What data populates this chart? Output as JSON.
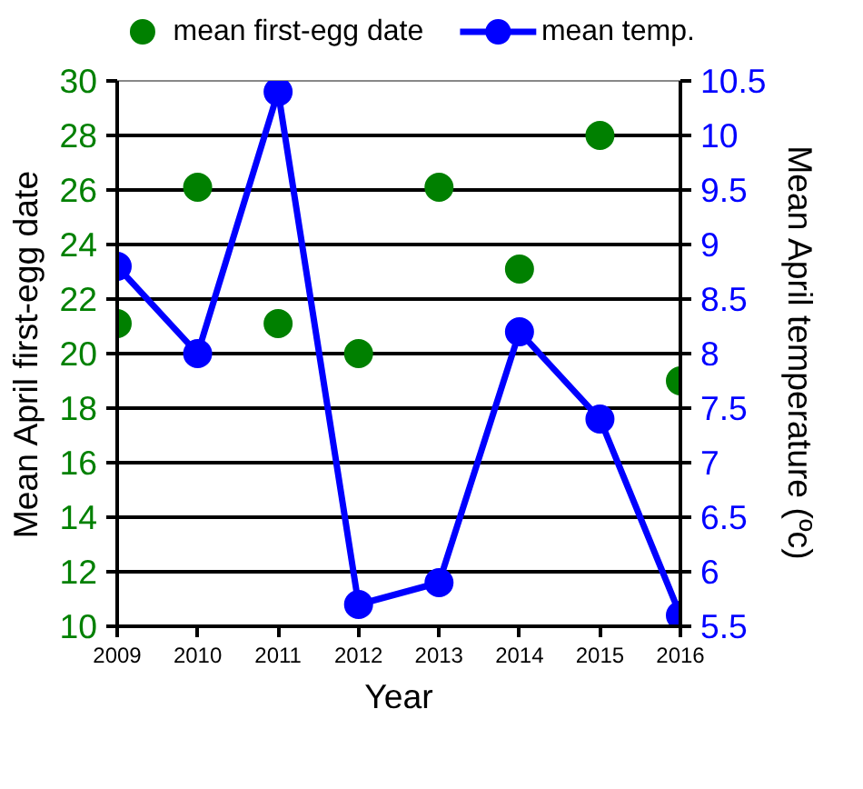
{
  "chart_data": {
    "type": "scatter",
    "xlabel": "Year",
    "ylabel": "Mean April first-egg date",
    "y2label": "Mean April temperature (ºc)",
    "x": [
      2009,
      2010,
      2011,
      2012,
      2013,
      2014,
      2015,
      2016
    ],
    "xlim": [
      2009,
      2016
    ],
    "xticks": [
      2009,
      2010,
      2011,
      2012,
      2013,
      2014,
      2015,
      2016
    ],
    "ylim": [
      10,
      30
    ],
    "yticks": [
      10,
      12,
      14,
      16,
      18,
      20,
      22,
      24,
      26,
      28,
      30
    ],
    "y2lim": [
      5.5,
      10.5
    ],
    "y2ticks": [
      5.5,
      6,
      6.5,
      7,
      7.5,
      8,
      8.5,
      9,
      9.5,
      10,
      10.5
    ],
    "series": [
      {
        "name": "mean first-egg date",
        "color": "#008000",
        "values": [
          21.1,
          26.1,
          21.1,
          20,
          26.1,
          23.1,
          28,
          19
        ]
      },
      {
        "name": "mean temp.",
        "color": "#0000ff",
        "type": "line",
        "axis": "y2",
        "values": [
          8.8,
          8.0,
          10.4,
          5.7,
          5.9,
          8.2,
          7.4,
          5.6
        ]
      }
    ],
    "grid": "y",
    "legend": "top",
    "marker": "circle",
    "line_style": "solid"
  }
}
